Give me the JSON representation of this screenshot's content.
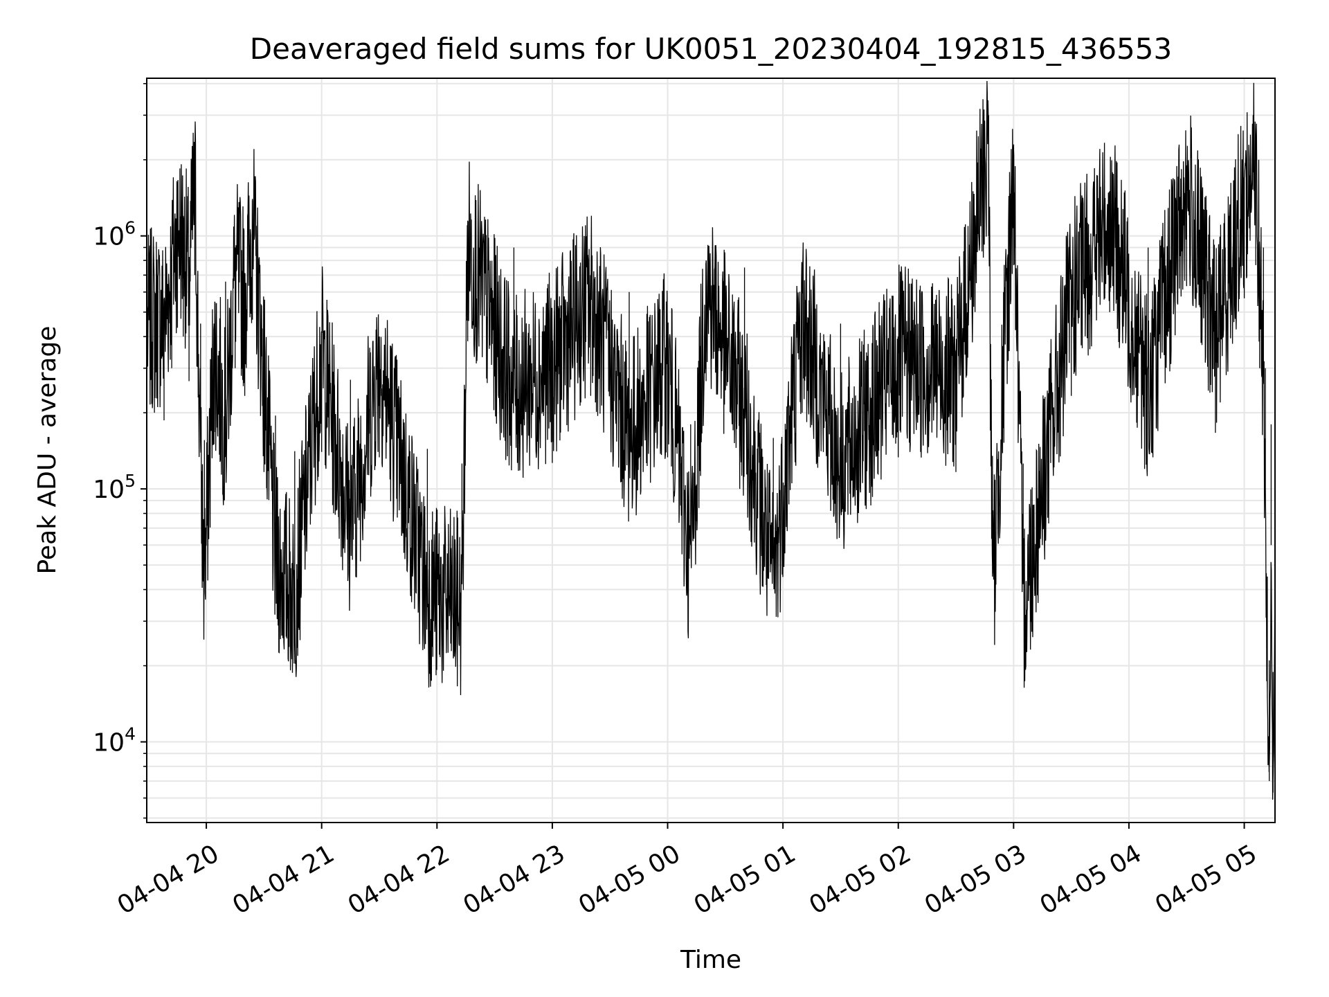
{
  "chart_data": {
    "type": "line",
    "title": "Deaveraged field sums for UK0051_20230404_192815_436553",
    "xlabel": "Time",
    "ylabel": "Peak ADU - average",
    "yscale": "log",
    "ylim": [
      4800,
      4200000
    ],
    "xlim": [
      "2023-04-04 19:29",
      "2023-04-05 05:16"
    ],
    "grid": true,
    "line_color": "#000000",
    "grid_color": "#e6e6e6",
    "x_ticks": [
      {
        "value": "2023-04-04 20:00",
        "label": "04-04 20"
      },
      {
        "value": "2023-04-04 21:00",
        "label": "04-04 21"
      },
      {
        "value": "2023-04-04 22:00",
        "label": "04-04 22"
      },
      {
        "value": "2023-04-04 23:00",
        "label": "04-04 23"
      },
      {
        "value": "2023-04-05 00:00",
        "label": "04-05 00"
      },
      {
        "value": "2023-04-05 01:00",
        "label": "04-05 01"
      },
      {
        "value": "2023-04-05 02:00",
        "label": "04-05 02"
      },
      {
        "value": "2023-04-05 03:00",
        "label": "04-05 03"
      },
      {
        "value": "2023-04-05 04:00",
        "label": "04-05 04"
      },
      {
        "value": "2023-04-05 05:00",
        "label": "04-05 05"
      }
    ],
    "y_ticks": [
      {
        "value": 10000,
        "base": "10",
        "exp": "4"
      },
      {
        "value": 100000,
        "base": "10",
        "exp": "5"
      },
      {
        "value": 1000000,
        "base": "10",
        "exp": "6"
      }
    ],
    "series": [
      {
        "points": [
          [
            "2023-04-04 19:29",
            520000
          ],
          [
            "2023-04-04 19:33",
            600000
          ],
          [
            "2023-04-04 19:38",
            560000
          ],
          [
            "2023-04-04 19:42",
            900000
          ],
          [
            "2023-04-04 19:45",
            1300000
          ],
          [
            "2023-04-04 19:48",
            1200000
          ],
          [
            "2023-04-04 19:51",
            800000
          ],
          [
            "2023-04-04 19:54",
            2100000
          ],
          [
            "2023-04-04 19:57",
            150000
          ],
          [
            "2023-04-04 19:59",
            52000
          ],
          [
            "2023-04-04 20:04",
            450000
          ],
          [
            "2023-04-04 20:10",
            220000
          ],
          [
            "2023-04-04 20:15",
            900000
          ],
          [
            "2023-04-04 20:20",
            700000
          ],
          [
            "2023-04-04 20:24",
            1400000
          ],
          [
            "2023-04-04 20:30",
            350000
          ],
          [
            "2023-04-04 20:36",
            65000
          ],
          [
            "2023-04-04 20:46",
            47000
          ],
          [
            "2023-04-04 21:00",
            420000
          ],
          [
            "2023-04-04 21:15",
            90000
          ],
          [
            "2023-04-04 21:30",
            400000
          ],
          [
            "2023-04-04 21:55",
            48000
          ],
          [
            "2023-04-04 22:13",
            42000
          ],
          [
            "2023-04-04 22:16",
            1150000
          ],
          [
            "2023-04-04 22:40",
            300000
          ],
          [
            "2023-04-04 23:00",
            380000
          ],
          [
            "2023-04-04 23:20",
            700000
          ],
          [
            "2023-04-04 23:40",
            200000
          ],
          [
            "2023-04-05 00:00",
            400000
          ],
          [
            "2023-04-05 00:12",
            60000
          ],
          [
            "2023-04-05 00:20",
            800000
          ],
          [
            "2023-04-05 00:40",
            250000
          ],
          [
            "2023-04-05 00:55",
            53000
          ],
          [
            "2023-04-05 01:10",
            600000
          ],
          [
            "2023-04-05 01:30",
            150000
          ],
          [
            "2023-04-05 02:00",
            400000
          ],
          [
            "2023-04-05 02:30",
            350000
          ],
          [
            "2023-04-05 02:47",
            3000000
          ],
          [
            "2023-04-05 02:49",
            45000
          ],
          [
            "2023-04-05 03:00",
            2300000
          ],
          [
            "2023-04-05 03:05",
            42000
          ],
          [
            "2023-04-05 03:30",
            700000
          ],
          [
            "2023-04-05 03:50",
            1500000
          ],
          [
            "2023-04-05 04:10",
            300000
          ],
          [
            "2023-04-05 04:30",
            1900000
          ],
          [
            "2023-04-05 04:45",
            500000
          ],
          [
            "2023-04-05 05:00",
            1700000
          ],
          [
            "2023-04-05 05:06",
            2300000
          ],
          [
            "2023-04-05 05:08",
            900000
          ],
          [
            "2023-04-05 05:10",
            300000
          ],
          [
            "2023-04-05 05:11",
            100000
          ],
          [
            "2023-04-05 05:12",
            15000
          ],
          [
            "2023-04-05 05:13",
            7000
          ],
          [
            "2023-04-05 05:14",
            60000
          ],
          [
            "2023-04-05 05:15",
            6300
          ],
          [
            "2023-04-05 05:16",
            40000
          ]
        ]
      }
    ]
  }
}
